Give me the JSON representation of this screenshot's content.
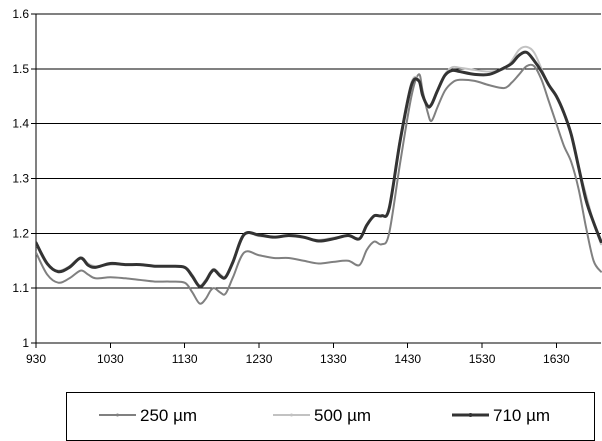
{
  "chart_data": {
    "type": "line",
    "title": "",
    "xlabel": "",
    "ylabel": "",
    "xlim": [
      930,
      1690
    ],
    "ylim": [
      1.0,
      1.6
    ],
    "x_ticks": [
      930,
      1030,
      1130,
      1230,
      1330,
      1430,
      1530,
      1630
    ],
    "x_tick_labels": [
      "930",
      "1030",
      "1130",
      "1230",
      "1330",
      "1430",
      "1530",
      "1630"
    ],
    "y_ticks": [
      1.0,
      1.1,
      1.2,
      1.3,
      1.4,
      1.5,
      1.6
    ],
    "y_tick_labels": [
      "1",
      "1.1",
      "1.2",
      "1.3",
      "1.4",
      "1.5",
      "1.6"
    ],
    "grid": "horizontal",
    "legend_position": "bottom",
    "series": [
      {
        "name": "250 µm",
        "color": "#808080",
        "width": 2,
        "x": [
          930,
          945,
          960,
          975,
          990,
          1000,
          1010,
          1030,
          1050,
          1070,
          1090,
          1110,
          1130,
          1140,
          1150,
          1158,
          1165,
          1170,
          1178,
          1185,
          1195,
          1210,
          1230,
          1250,
          1270,
          1290,
          1310,
          1330,
          1350,
          1365,
          1375,
          1385,
          1395,
          1405,
          1420,
          1435,
          1445,
          1450,
          1457,
          1462,
          1470,
          1480,
          1490,
          1500,
          1520,
          1540,
          1560,
          1570,
          1580,
          1590,
          1600,
          1610,
          1620,
          1630,
          1640,
          1650,
          1660,
          1670,
          1680,
          1690
        ],
        "y": [
          1.165,
          1.125,
          1.11,
          1.118,
          1.132,
          1.125,
          1.118,
          1.12,
          1.118,
          1.115,
          1.112,
          1.112,
          1.11,
          1.093,
          1.072,
          1.08,
          1.096,
          1.1,
          1.092,
          1.09,
          1.12,
          1.165,
          1.16,
          1.155,
          1.155,
          1.15,
          1.145,
          1.148,
          1.15,
          1.142,
          1.17,
          1.185,
          1.18,
          1.2,
          1.33,
          1.45,
          1.49,
          1.46,
          1.42,
          1.405,
          1.43,
          1.46,
          1.475,
          1.48,
          1.478,
          1.47,
          1.465,
          1.475,
          1.49,
          1.505,
          1.505,
          1.48,
          1.44,
          1.4,
          1.36,
          1.33,
          1.28,
          1.21,
          1.15,
          1.13
        ]
      },
      {
        "name": "500 µm",
        "color": "#c2c2c2",
        "width": 2,
        "x": [
          930,
          945,
          960,
          975,
          990,
          1000,
          1010,
          1030,
          1050,
          1070,
          1090,
          1110,
          1130,
          1140,
          1150,
          1158,
          1165,
          1170,
          1178,
          1185,
          1195,
          1210,
          1230,
          1250,
          1270,
          1290,
          1310,
          1330,
          1350,
          1365,
          1375,
          1385,
          1395,
          1405,
          1420,
          1435,
          1445,
          1450,
          1457,
          1462,
          1470,
          1480,
          1490,
          1500,
          1520,
          1540,
          1560,
          1570,
          1580,
          1590,
          1600,
          1610,
          1620,
          1630,
          1640,
          1650,
          1660,
          1670,
          1680,
          1690
        ],
        "y": [
          1.18,
          1.143,
          1.132,
          1.14,
          1.156,
          1.145,
          1.14,
          1.143,
          1.143,
          1.143,
          1.14,
          1.14,
          1.138,
          1.125,
          1.105,
          1.115,
          1.13,
          1.135,
          1.125,
          1.122,
          1.15,
          1.198,
          1.195,
          1.193,
          1.195,
          1.192,
          1.188,
          1.192,
          1.195,
          1.19,
          1.215,
          1.232,
          1.232,
          1.245,
          1.375,
          1.475,
          1.48,
          1.455,
          1.43,
          1.435,
          1.46,
          1.49,
          1.503,
          1.502,
          1.498,
          1.495,
          1.5,
          1.515,
          1.535,
          1.54,
          1.53,
          1.5,
          1.47,
          1.45,
          1.42,
          1.38,
          1.32,
          1.27,
          1.22,
          1.18
        ]
      },
      {
        "name": "710 µm",
        "color": "#333333",
        "width": 3,
        "x": [
          930,
          945,
          960,
          975,
          990,
          1000,
          1010,
          1030,
          1050,
          1070,
          1090,
          1110,
          1130,
          1140,
          1150,
          1158,
          1165,
          1170,
          1178,
          1185,
          1195,
          1210,
          1230,
          1250,
          1270,
          1290,
          1310,
          1330,
          1350,
          1365,
          1375,
          1385,
          1395,
          1405,
          1420,
          1435,
          1445,
          1450,
          1457,
          1462,
          1470,
          1480,
          1490,
          1500,
          1520,
          1540,
          1560,
          1570,
          1580,
          1590,
          1600,
          1610,
          1620,
          1630,
          1640,
          1650,
          1660,
          1670,
          1680,
          1690
        ],
        "y": [
          1.183,
          1.145,
          1.13,
          1.138,
          1.155,
          1.142,
          1.138,
          1.145,
          1.143,
          1.143,
          1.14,
          1.14,
          1.138,
          1.122,
          1.103,
          1.112,
          1.128,
          1.133,
          1.122,
          1.12,
          1.148,
          1.198,
          1.197,
          1.193,
          1.196,
          1.193,
          1.186,
          1.19,
          1.196,
          1.19,
          1.215,
          1.232,
          1.232,
          1.245,
          1.37,
          1.47,
          1.478,
          1.452,
          1.432,
          1.435,
          1.46,
          1.488,
          1.497,
          1.495,
          1.49,
          1.49,
          1.502,
          1.51,
          1.525,
          1.53,
          1.515,
          1.495,
          1.47,
          1.45,
          1.42,
          1.38,
          1.32,
          1.26,
          1.22,
          1.185
        ]
      }
    ]
  }
}
